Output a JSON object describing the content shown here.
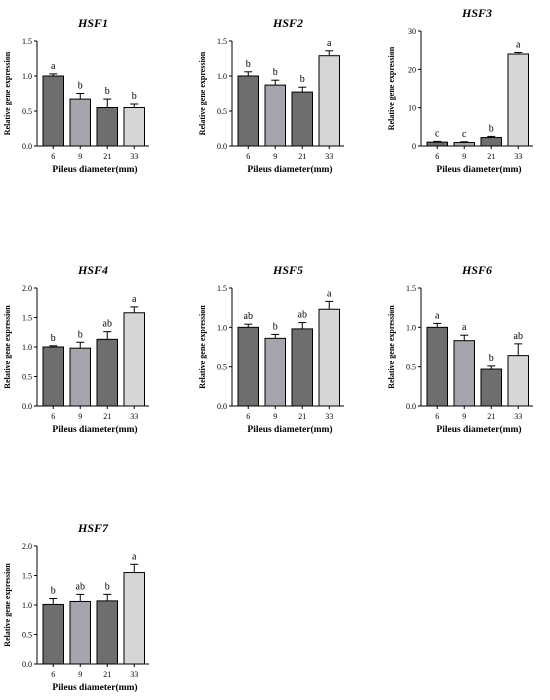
{
  "colors": {
    "bar_6": "#6e6e6e",
    "bar_9": "#a5a5ad",
    "bar_21": "#6e6e6e",
    "bar_33": "#d6d6d6",
    "axis": "#000000"
  },
  "chart_data": [
    {
      "type": "bar",
      "title": "HSF1",
      "xlabel": "Pileus diameter(mm)",
      "ylabel": "Relative gene expression",
      "categories": [
        "6",
        "9",
        "21",
        "33"
      ],
      "values": [
        1.0,
        0.67,
        0.55,
        0.55
      ],
      "errors": [
        0.03,
        0.08,
        0.12,
        0.05
      ],
      "letters": [
        "a",
        "b",
        "b",
        "b"
      ],
      "ylim": [
        0,
        1.5
      ],
      "yticks": [
        "0.0",
        "0.5",
        "1.0",
        "1.5"
      ]
    },
    {
      "type": "bar",
      "title": "HSF2",
      "xlabel": "Pileus diameter(mm)",
      "ylabel": "Relative gene expression",
      "categories": [
        "6",
        "9",
        "21",
        "33"
      ],
      "values": [
        1.0,
        0.87,
        0.77,
        1.29
      ],
      "errors": [
        0.06,
        0.07,
        0.07,
        0.07
      ],
      "letters": [
        "b",
        "b",
        "b",
        "a"
      ],
      "ylim": [
        0,
        1.5
      ],
      "yticks": [
        "0.0",
        "0.5",
        "1.0",
        "1.5"
      ]
    },
    {
      "type": "bar",
      "title": "HSF3",
      "xlabel": "Pileus diameter(mm)",
      "ylabel": "Relative gene expression",
      "categories": [
        "6",
        "9",
        "21",
        "33"
      ],
      "values": [
        1.0,
        0.9,
        2.2,
        24.0
      ],
      "errors": [
        0.2,
        0.2,
        0.3,
        0.4
      ],
      "letters": [
        "c",
        "c",
        "b",
        "a"
      ],
      "ylim": [
        0,
        30
      ],
      "yticks": [
        "0",
        "10",
        "20",
        "30"
      ]
    },
    {
      "type": "bar",
      "title": "HSF4",
      "xlabel": "Pileus diameter(mm)",
      "ylabel": "Relative gene expression",
      "categories": [
        "6",
        "9",
        "21",
        "33"
      ],
      "values": [
        1.0,
        0.98,
        1.13,
        1.58
      ],
      "errors": [
        0.02,
        0.1,
        0.13,
        0.1
      ],
      "letters": [
        "b",
        "b",
        "ab",
        "a"
      ],
      "ylim": [
        0,
        2.0
      ],
      "yticks": [
        "0.0",
        "0.5",
        "1.0",
        "1.5",
        "2.0"
      ]
    },
    {
      "type": "bar",
      "title": "HSF5",
      "xlabel": "Pileus diameter(mm)",
      "ylabel": "Relative gene expression",
      "categories": [
        "6",
        "9",
        "21",
        "33"
      ],
      "values": [
        1.0,
        0.86,
        0.98,
        1.23
      ],
      "errors": [
        0.04,
        0.05,
        0.08,
        0.1
      ],
      "letters": [
        "ab",
        "b",
        "ab",
        "a"
      ],
      "ylim": [
        0,
        1.5
      ],
      "yticks": [
        "0.0",
        "0.5",
        "1.0",
        "1.5"
      ]
    },
    {
      "type": "bar",
      "title": "HSF6",
      "xlabel": "Pileus diameter(mm)",
      "ylabel": "Relative gene expression",
      "categories": [
        "6",
        "9",
        "21",
        "33"
      ],
      "values": [
        1.0,
        0.83,
        0.47,
        0.64
      ],
      "errors": [
        0.05,
        0.07,
        0.04,
        0.15
      ],
      "letters": [
        "a",
        "a",
        "b",
        "ab"
      ],
      "ylim": [
        0,
        1.5
      ],
      "yticks": [
        "0.0",
        "0.5",
        "1.0",
        "1.5"
      ]
    },
    {
      "type": "bar",
      "title": "HSF7",
      "xlabel": "Pileus diameter(mm)",
      "ylabel": "Relative gene expression",
      "categories": [
        "6",
        "9",
        "21",
        "33"
      ],
      "values": [
        1.01,
        1.06,
        1.07,
        1.55
      ],
      "errors": [
        0.1,
        0.12,
        0.11,
        0.14
      ],
      "letters": [
        "b",
        "ab",
        "b",
        "a"
      ],
      "ylim": [
        0,
        2.0
      ],
      "yticks": [
        "0.0",
        "0.5",
        "1.0",
        "1.5",
        "2.0"
      ]
    }
  ]
}
